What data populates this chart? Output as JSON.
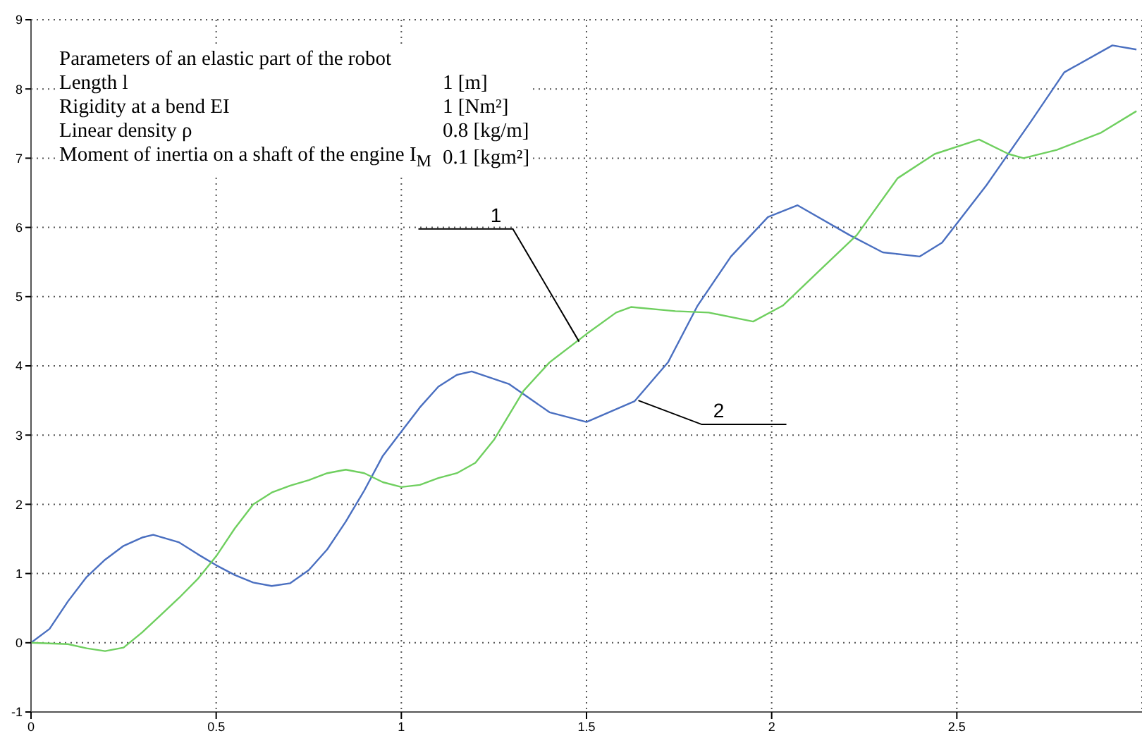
{
  "chart_data": {
    "type": "line",
    "xlim": [
      0,
      3
    ],
    "ylim": [
      -1,
      9
    ],
    "xticks": [
      0,
      0.5,
      1,
      1.5,
      2,
      2.5
    ],
    "yticks": [
      -1,
      0,
      1,
      2,
      3,
      4,
      5,
      6,
      7,
      8,
      9
    ],
    "grid": true,
    "line_style": "solid",
    "marker": "none",
    "series": [
      {
        "color": "#4a6fc0",
        "x": [
          0,
          0.05,
          0.1,
          0.15,
          0.2,
          0.25,
          0.3,
          0.33,
          0.4,
          0.45,
          0.5,
          0.55,
          0.6,
          0.65,
          0.7,
          0.75,
          0.8,
          0.85,
          0.9,
          0.95,
          1.0,
          1.05,
          1.1,
          1.15,
          1.19,
          1.29,
          1.4,
          1.5,
          1.63,
          1.72,
          1.8,
          1.89,
          1.99,
          2.07,
          2.21,
          2.3,
          2.4,
          2.46,
          2.58,
          2.7,
          2.79,
          2.92,
          2.985
        ],
        "values": [
          0,
          0.2,
          0.6,
          0.95,
          1.2,
          1.4,
          1.52,
          1.56,
          1.45,
          1.28,
          1.12,
          0.98,
          0.87,
          0.82,
          0.86,
          1.05,
          1.35,
          1.75,
          2.2,
          2.7,
          3.05,
          3.4,
          3.7,
          3.87,
          3.92,
          3.74,
          3.33,
          3.19,
          3.49,
          4.05,
          4.87,
          5.58,
          6.15,
          6.32,
          5.89,
          5.64,
          5.58,
          5.78,
          6.61,
          7.53,
          8.24,
          8.63,
          8.57
        ]
      },
      {
        "color": "#6fcf5f",
        "x": [
          0,
          0.1,
          0.15,
          0.2,
          0.25,
          0.3,
          0.35,
          0.4,
          0.45,
          0.5,
          0.55,
          0.6,
          0.65,
          0.7,
          0.75,
          0.8,
          0.85,
          0.9,
          0.95,
          1.0,
          1.05,
          1.1,
          1.15,
          1.2,
          1.25,
          1.33,
          1.4,
          1.5,
          1.58,
          1.62,
          1.74,
          1.83,
          1.95,
          2.03,
          2.13,
          2.23,
          2.34,
          2.44,
          2.56,
          2.64,
          2.68,
          2.77,
          2.89,
          2.985
        ],
        "values": [
          0,
          -0.02,
          -0.08,
          -0.12,
          -0.07,
          0.15,
          0.4,
          0.65,
          0.92,
          1.25,
          1.65,
          2.0,
          2.17,
          2.27,
          2.35,
          2.45,
          2.5,
          2.45,
          2.32,
          2.25,
          2.28,
          2.38,
          2.45,
          2.6,
          2.93,
          3.64,
          4.05,
          4.46,
          4.77,
          4.85,
          4.79,
          4.77,
          4.64,
          4.87,
          5.38,
          5.89,
          6.71,
          7.06,
          7.27,
          7.06,
          7.0,
          7.12,
          7.37,
          7.68
        ]
      }
    ],
    "annotations": [
      {
        "text": "1",
        "x": 1.48,
        "y": 4.35
      },
      {
        "text": "2",
        "x": 1.64,
        "y": 3.5
      },
      "Parameters of an elastic part of the robot",
      "Length l",
      "1 [m]",
      "Rigidity at a bend EI",
      "1 [Nm²]",
      "Linear density ρ",
      "0.8 [kg/m]",
      "Moment of inertia on a shaft of the engine I$_{M}$",
      "0.1 [kgm²]"
    ]
  }
}
